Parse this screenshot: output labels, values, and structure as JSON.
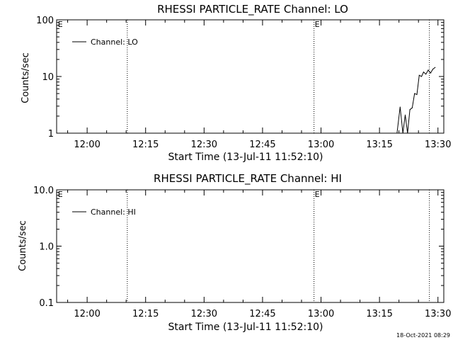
{
  "chart_data": [
    {
      "type": "line",
      "title": "RHESSI PARTICLE_RATE Channel: LO",
      "xlabel": "Start Time (13-Jul-11 11:52:10)",
      "ylabel": "Counts/sec",
      "y_scale": "log",
      "ylim": [
        1,
        100
      ],
      "y_ticks": [
        {
          "value": 1,
          "label": "1"
        },
        {
          "value": 10,
          "label": "10"
        },
        {
          "value": 100,
          "label": "100"
        }
      ],
      "x_ticks": [
        "12:00",
        "12:15",
        "12:30",
        "12:45",
        "13:00",
        "13:15",
        "13:30"
      ],
      "x_tick_minutes": [
        0,
        15,
        30,
        45,
        60,
        75,
        90
      ],
      "x_range_minutes": [
        -7.83,
        91.5
      ],
      "grid": false,
      "legend_position": "top-left",
      "series": [
        {
          "name": "Channel: LO",
          "x_minutes": [
            79.5,
            80.3,
            81.0,
            81.6,
            82.2,
            82.8,
            83.4,
            84.0,
            84.6,
            85.2,
            85.8,
            86.3,
            86.9,
            87.5,
            88.1,
            88.7,
            89.3
          ],
          "values": [
            1.0,
            2.9,
            1.0,
            2.1,
            1.0,
            2.6,
            2.8,
            5.0,
            4.8,
            10.5,
            10.0,
            12.0,
            11.0,
            13.0,
            11.5,
            13.5,
            14.5
          ]
        }
      ],
      "event_lines_minutes": [
        10.3,
        58.2,
        87.8
      ],
      "event_markers": [
        {
          "x_minutes": -7.7,
          "label": "E"
        },
        {
          "x_minutes": 58.2,
          "label": "E"
        }
      ]
    },
    {
      "type": "line",
      "title": "RHESSI PARTICLE_RATE Channel: HI",
      "xlabel": "Start Time (13-Jul-11 11:52:10)",
      "ylabel": "Counts/sec",
      "y_scale": "log",
      "ylim": [
        0.1,
        10
      ],
      "y_ticks": [
        {
          "value": 0.1,
          "label": "0.1"
        },
        {
          "value": 1,
          "label": "1.0"
        },
        {
          "value": 10,
          "label": "10.0"
        }
      ],
      "x_ticks": [
        "12:00",
        "12:15",
        "12:30",
        "12:45",
        "13:00",
        "13:15",
        "13:30"
      ],
      "x_tick_minutes": [
        0,
        15,
        30,
        45,
        60,
        75,
        90
      ],
      "x_range_minutes": [
        -7.83,
        91.5
      ],
      "grid": false,
      "legend_position": "top-left",
      "series": [
        {
          "name": "Channel: HI",
          "x_minutes": [],
          "values": []
        }
      ],
      "event_lines_minutes": [
        10.3,
        58.2,
        87.8
      ],
      "event_markers": [
        {
          "x_minutes": -7.7,
          "label": "E"
        },
        {
          "x_minutes": 58.2,
          "label": "E"
        }
      ]
    }
  ],
  "footer": {
    "timestamp": "18-Oct-2021 08:29"
  }
}
